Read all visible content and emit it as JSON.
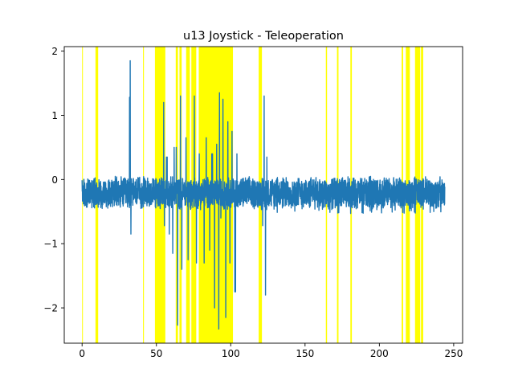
{
  "chart_data": {
    "type": "line",
    "title": "u13 Joystick - Teleoperation",
    "xlabel": "",
    "ylabel": "",
    "xlim": [
      -12,
      256
    ],
    "ylim": [
      -2.55,
      2.07
    ],
    "xticks": [
      0,
      50,
      100,
      150,
      200,
      250
    ],
    "xtick_labels": [
      "0",
      "50",
      "100",
      "150",
      "200",
      "250"
    ],
    "yticks": [
      -2,
      -1,
      0,
      1,
      2
    ],
    "ytick_labels": [
      "−2",
      "−1",
      "0",
      "1",
      "2"
    ],
    "grid": false,
    "legend": "none",
    "colors": {
      "series": "#1f77b4",
      "highlight": "#ffff00",
      "axes": "#000000",
      "background": "#ffffff"
    },
    "highlight_intervals": [
      [
        0.0,
        0.4
      ],
      [
        9.0,
        10.8
      ],
      [
        41.0,
        41.6
      ],
      [
        49.0,
        56.0
      ],
      [
        63.0,
        64.5
      ],
      [
        65.5,
        67.0
      ],
      [
        70.0,
        72.5
      ],
      [
        73.5,
        76.8
      ],
      [
        78.5,
        101.5
      ],
      [
        118.8,
        121.0
      ],
      [
        164.0,
        164.8
      ],
      [
        171.5,
        172.5
      ],
      [
        180.5,
        181.5
      ],
      [
        215.0,
        216.0
      ],
      [
        217.8,
        220.5
      ],
      [
        224.0,
        227.5
      ],
      [
        228.0,
        229.5
      ]
    ],
    "series": [
      {
        "x_range": [
          0,
          244
        ],
        "baseline_band": [
          -0.48,
          0.06
        ],
        "spikes": [
          [
            32.5,
            1.85
          ],
          [
            32.0,
            1.28
          ],
          [
            33.0,
            -0.85
          ],
          [
            54.8,
            1.2
          ],
          [
            55.5,
            -0.72
          ],
          [
            57.0,
            0.35
          ],
          [
            58.5,
            -0.85
          ],
          [
            61.0,
            -1.15
          ],
          [
            62.0,
            0.5
          ],
          [
            63.5,
            0.5
          ],
          [
            64.5,
            -2.27
          ],
          [
            66.0,
            1.3
          ],
          [
            67.0,
            -1.4
          ],
          [
            70.0,
            0.65
          ],
          [
            71.5,
            -1.25
          ],
          [
            75.5,
            1.3
          ],
          [
            76.8,
            -1.3
          ],
          [
            79.0,
            0.4
          ],
          [
            82.0,
            -1.3
          ],
          [
            83.5,
            0.65
          ],
          [
            86.0,
            -1.1
          ],
          [
            87.5,
            0.4
          ],
          [
            89.0,
            -2.0
          ],
          [
            90.5,
            0.55
          ],
          [
            91.8,
            -2.33
          ],
          [
            92.5,
            1.35
          ],
          [
            93.5,
            -0.6
          ],
          [
            95.0,
            1.25
          ],
          [
            96.5,
            -2.15
          ],
          [
            98.0,
            0.9
          ],
          [
            99.5,
            -1.3
          ],
          [
            101.0,
            0.75
          ],
          [
            103.0,
            -1.75
          ],
          [
            104.0,
            0.4
          ],
          [
            121.5,
            -0.72
          ],
          [
            122.5,
            1.3
          ],
          [
            123.5,
            -1.8
          ],
          [
            124.5,
            0.35
          ]
        ]
      }
    ]
  }
}
